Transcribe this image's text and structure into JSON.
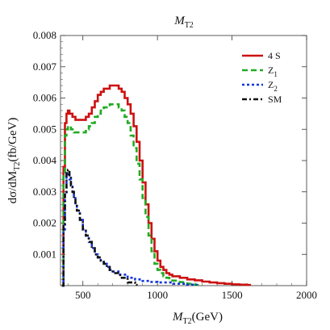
{
  "chart_data": {
    "type": "line",
    "title": {
      "main": "M",
      "sub": "T2"
    },
    "xlabel": {
      "main": "M",
      "sub": "T2",
      "rest": "(GeV)"
    },
    "ylabel": {
      "pre": "dσ/dM",
      "sub": "T2",
      "rest": "(fb/GeV)"
    },
    "xlim": [
      350,
      2000
    ],
    "ylim": [
      0,
      0.008
    ],
    "x_ticks": [
      500,
      1000,
      1500,
      2000
    ],
    "x_tick_labels": [
      "500",
      "1000",
      "1500",
      "2000"
    ],
    "y_ticks": [
      0.001,
      0.002,
      0.003,
      0.004,
      0.005,
      0.006,
      0.007,
      0.008
    ],
    "y_tick_labels": [
      "0.001",
      "0.002",
      "0.003",
      "0.004",
      "0.005",
      "0.006",
      "0.007",
      "0.008"
    ],
    "grid": false,
    "legend_position": "top-right",
    "series": [
      {
        "name": "4 S",
        "legend_main": "4 S",
        "legend_sub": "",
        "color": "#cc1111",
        "dash": "",
        "width": 2.6,
        "x": [
          360,
          370,
          380,
          390,
          400,
          410,
          420,
          430,
          440,
          450,
          460,
          480,
          500,
          520,
          540,
          560,
          580,
          600,
          620,
          640,
          660,
          680,
          700,
          720,
          740,
          760,
          780,
          800,
          820,
          840,
          860,
          880,
          900,
          920,
          940,
          960,
          980,
          1000,
          1020,
          1040,
          1060,
          1080,
          1100,
          1150,
          1200,
          1250,
          1300,
          1350,
          1400,
          1450,
          1500,
          1550,
          1600,
          1620
        ],
        "y": [
          0,
          0.0038,
          0.0052,
          0.0055,
          0.0056,
          0.0055,
          0.0055,
          0.0054,
          0.0054,
          0.0053,
          0.0053,
          0.0053,
          0.0053,
          0.0054,
          0.0055,
          0.0057,
          0.0059,
          0.0061,
          0.0062,
          0.0063,
          0.0063,
          0.0064,
          0.0064,
          0.0064,
          0.0063,
          0.0062,
          0.006,
          0.0058,
          0.0055,
          0.0051,
          0.0046,
          0.004,
          0.0033,
          0.0026,
          0.002,
          0.0015,
          0.0011,
          0.0008,
          0.0006,
          0.0005,
          0.0004,
          0.00035,
          0.0003,
          0.00025,
          0.0002,
          0.00017,
          0.00013,
          0.0001,
          8e-05,
          6e-05,
          4e-05,
          3e-05,
          2e-05,
          0
        ]
      },
      {
        "name": "Z1",
        "legend_main": "Z",
        "legend_sub": "1",
        "color": "#22aa22",
        "dash": "7,4",
        "width": 2.6,
        "x": [
          360,
          370,
          380,
          390,
          400,
          410,
          420,
          430,
          440,
          460,
          480,
          500,
          520,
          540,
          560,
          580,
          600,
          620,
          640,
          660,
          680,
          700,
          720,
          740,
          760,
          780,
          800,
          820,
          840,
          860,
          880,
          900,
          920,
          940,
          960,
          980,
          1000,
          1020,
          1040,
          1060,
          1080,
          1100,
          1150,
          1200,
          1250,
          1270
        ],
        "y": [
          0,
          0.0035,
          0.0048,
          0.005,
          0.0051,
          0.0051,
          0.005,
          0.005,
          0.0049,
          0.0049,
          0.0049,
          0.0049,
          0.005,
          0.0051,
          0.0052,
          0.0054,
          0.0055,
          0.0056,
          0.0057,
          0.0057,
          0.0058,
          0.0058,
          0.0058,
          0.0057,
          0.0056,
          0.0054,
          0.0052,
          0.0048,
          0.0044,
          0.0039,
          0.0034,
          0.0028,
          0.0022,
          0.0016,
          0.0011,
          0.0007,
          0.0005,
          0.0004,
          0.0003,
          0.00025,
          0.0002,
          0.00016,
          0.00011,
          6e-05,
          2e-05,
          0
        ]
      },
      {
        "name": "Z2",
        "legend_main": "Z",
        "legend_sub": "2",
        "color": "#1133dd",
        "dash": "3,3",
        "width": 2.6,
        "x": [
          360,
          370,
          380,
          390,
          400,
          410,
          420,
          430,
          440,
          450,
          460,
          480,
          500,
          520,
          540,
          560,
          580,
          600,
          620,
          640,
          660,
          680,
          700,
          750,
          800,
          850,
          900,
          950,
          1000,
          1100,
          1200,
          1260
        ],
        "y": [
          0,
          0.0018,
          0.0029,
          0.0035,
          0.0036,
          0.0034,
          0.0032,
          0.003,
          0.0028,
          0.0026,
          0.0024,
          0.0021,
          0.0018,
          0.0016,
          0.0014,
          0.0012,
          0.001,
          0.0009,
          0.0008,
          0.0007,
          0.0006,
          0.0005,
          0.00045,
          0.00035,
          0.00025,
          0.0002,
          0.00015,
          0.00012,
          0.0001,
          6e-05,
          3e-05,
          0
        ]
      },
      {
        "name": "SM",
        "legend_main": "SM",
        "legend_sub": "",
        "color": "#111111",
        "dash": "6,3,2,3",
        "width": 2.6,
        "x": [
          360,
          370,
          380,
          390,
          400,
          410,
          420,
          430,
          440,
          450,
          460,
          480,
          500,
          520,
          540,
          560,
          580,
          600,
          620,
          640,
          660,
          680,
          700,
          750,
          800,
          850,
          860
        ],
        "y": [
          0,
          0.0019,
          0.003,
          0.0036,
          0.0037,
          0.0035,
          0.0032,
          0.003,
          0.0028,
          0.0026,
          0.0024,
          0.0021,
          0.0018,
          0.0016,
          0.0014,
          0.0012,
          0.001,
          0.0009,
          0.0008,
          0.0007,
          0.0006,
          0.0005,
          0.0004,
          0.00025,
          0.0001,
          2e-05,
          0
        ]
      }
    ]
  }
}
